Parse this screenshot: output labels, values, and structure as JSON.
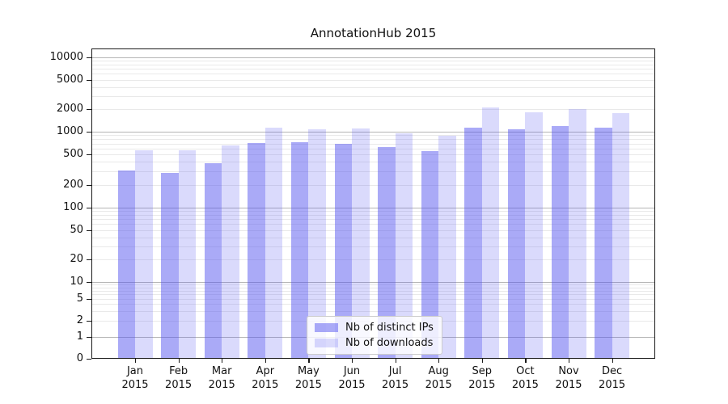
{
  "title": "AnnotationHub 2015",
  "colors": {
    "bar_ips": "rgba(85,85,240,0.50)",
    "bar_downloads": "rgba(85,85,240,0.22)",
    "grid_major": "#b5b5b5",
    "grid_minor": "#e9e9e9",
    "axis_line": "#1a1a1a",
    "legend_border": "#cccccc",
    "legend_bg": "rgba(255,255,255,0.8)"
  },
  "chart_data": {
    "type": "bar",
    "title": "AnnotationHub 2015",
    "categories": [
      "Jan 2015",
      "Feb 2015",
      "Mar 2015",
      "Apr 2015",
      "May 2015",
      "Jun 2015",
      "Jul 2015",
      "Aug 2015",
      "Sep 2015",
      "Oct 2015",
      "Nov 2015",
      "Dec 2015"
    ],
    "series": [
      {
        "name": "Nb of distinct IPs",
        "values": [
          310,
          285,
          385,
          715,
          720,
          700,
          630,
          550,
          1135,
          1070,
          1200,
          1125
        ]
      },
      {
        "name": "Nb of downloads",
        "values": [
          565,
          565,
          655,
          1125,
          1085,
          1115,
          955,
          880,
          2100,
          1810,
          2000,
          1765
        ]
      }
    ],
    "xlabel": "",
    "ylabel": "",
    "yscale": "symlog",
    "yticks": [
      0,
      1,
      2,
      5,
      10,
      20,
      50,
      100,
      200,
      500,
      1000,
      2000,
      5000,
      10000
    ],
    "ylim": [
      0,
      13000
    ],
    "grid": true,
    "legend_position": "lower center"
  }
}
